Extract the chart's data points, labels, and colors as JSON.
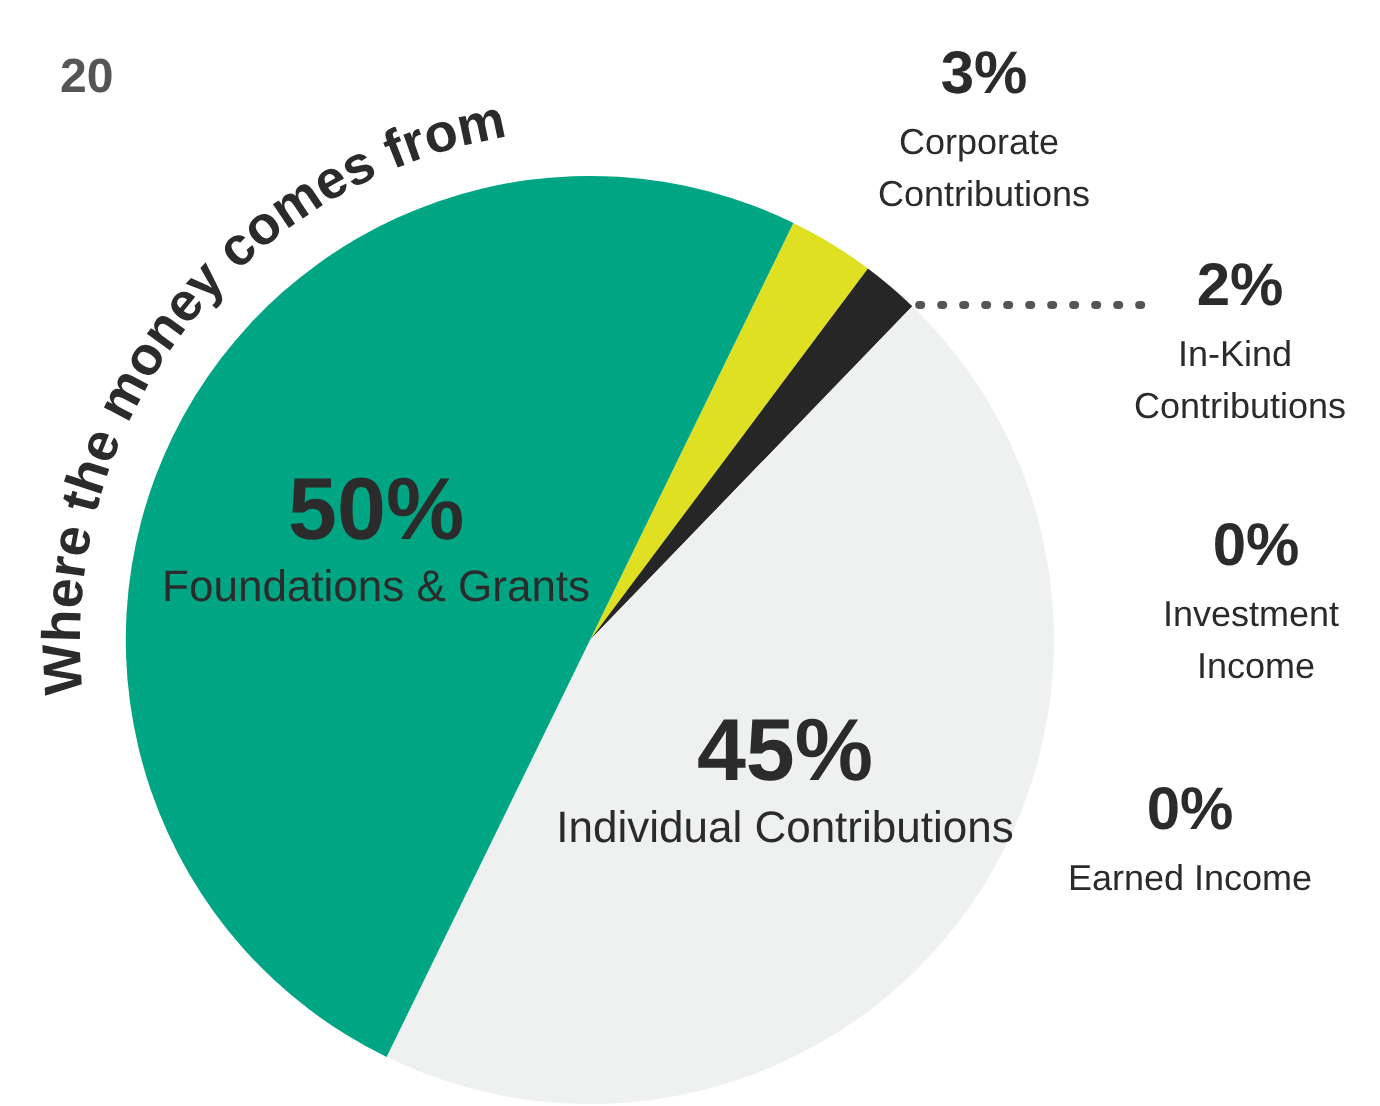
{
  "chart_data": {
    "type": "pie",
    "title": "Where the money comes from",
    "annotations": [
      "20"
    ],
    "categories": [
      "Corporate Contributions",
      "In-Kind Contributions",
      "Investment Income",
      "Earned Income",
      "Individual Contributions",
      "Foundations & Grants"
    ],
    "values": [
      3,
      2,
      0,
      0,
      45,
      50
    ],
    "value_labels": [
      "3%",
      "2%",
      "0%",
      "0%",
      "45%",
      "50%"
    ],
    "colors": [
      "#dfe021",
      "#262626",
      "#9a9a9a",
      "#9a9a9a",
      "#eff1f0",
      "#00a683"
    ],
    "data_labels": true
  }
}
